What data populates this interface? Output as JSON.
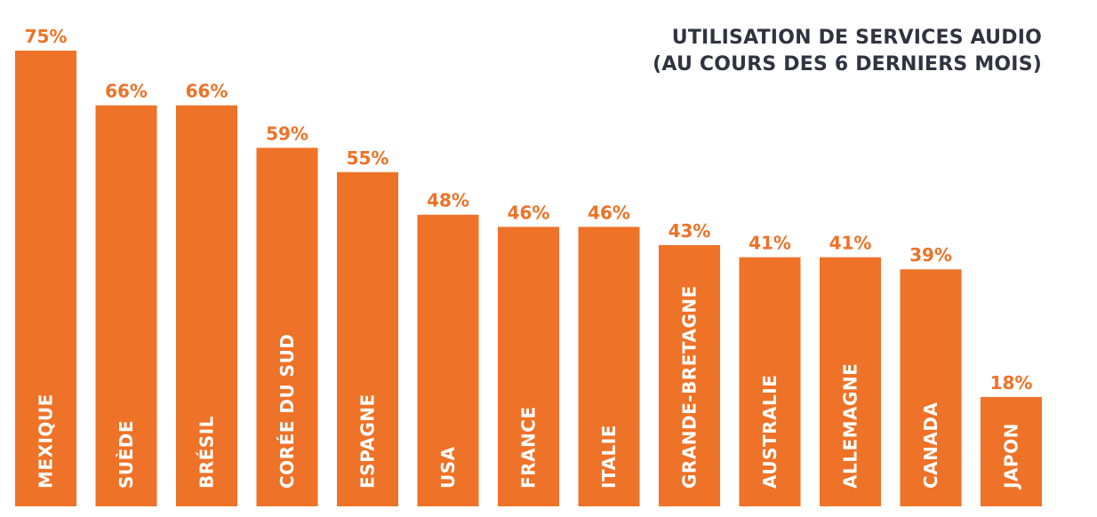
{
  "chart_data": {
    "type": "bar",
    "title_lines": [
      "UTILISATION DE SERVICES AUDIO",
      "(AU COURS DES 6 DERNIERS MOIS)"
    ],
    "categories": [
      "MEXIQUE",
      "SUÈDE",
      "BRÉSIL",
      "CORÉE DU SUD",
      "ESPAGNE",
      "USA",
      "FRANCE",
      "ITALIE",
      "GRANDE-BRETAGNE",
      "AUSTRALIE",
      "ALLEMAGNE",
      "CANADA",
      "JAPON"
    ],
    "values": [
      75,
      66,
      66,
      59,
      55,
      48,
      46,
      46,
      43,
      41,
      41,
      39,
      18
    ],
    "value_labels": [
      "75%",
      "66%",
      "66%",
      "59%",
      "55%",
      "48%",
      "46%",
      "46%",
      "43%",
      "41%",
      "41%",
      "39%",
      "18%"
    ],
    "ylim": [
      0,
      75
    ],
    "grid": false,
    "colors": {
      "bar": "#ee7227",
      "value_label": "#ee7227",
      "category_label": "#ffffff",
      "title": "#2f3440"
    }
  }
}
